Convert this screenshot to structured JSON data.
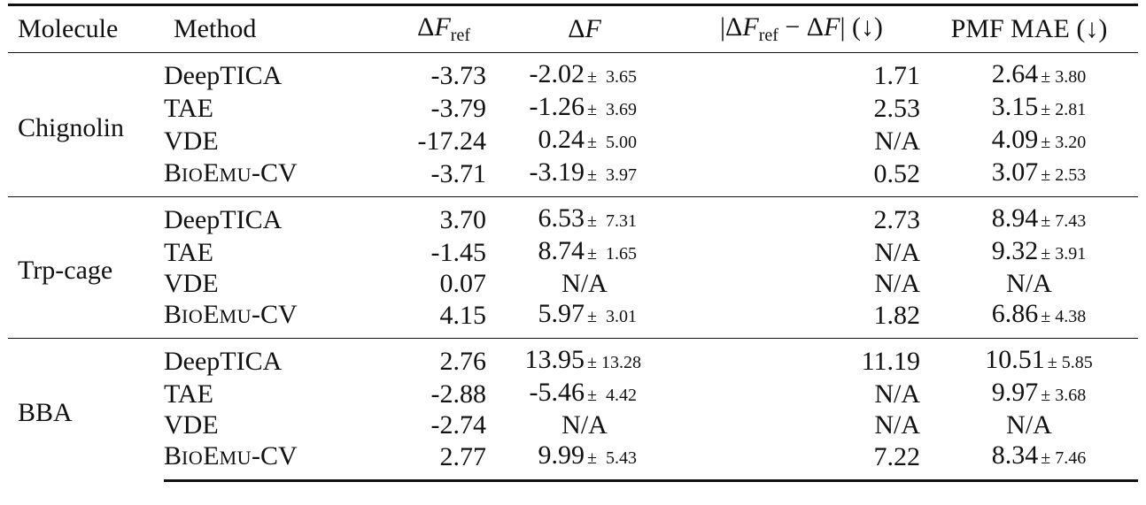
{
  "header": {
    "molecule": "Molecule",
    "method": "Method",
    "df_ref": "ΔF_ref",
    "df": "ΔF",
    "abs_diff": "|ΔF_ref − ΔF| (↓)",
    "pmf_mae": "PMF MAE (↓)"
  },
  "groups": [
    {
      "molecule": "Chignolin",
      "rows": [
        {
          "method": "DeepTICA",
          "df_ref": "-3.73",
          "df": "-2.02",
          "df_pm": "±  3.65",
          "abs": "1.71",
          "pmf": "2.64",
          "pmf_pm": "± 3.80"
        },
        {
          "method": "TAE",
          "df_ref": "-3.79",
          "df": "-1.26",
          "df_pm": "±  3.69",
          "abs": "2.53",
          "pmf": "3.15",
          "pmf_pm": "± 2.81"
        },
        {
          "method": "VDE",
          "df_ref": "-17.24",
          "df": "0.24",
          "df_pm": "±  5.00",
          "abs": "N/A",
          "pmf": "4.09",
          "pmf_pm": "± 3.20"
        },
        {
          "method": "BIOEMU-CV",
          "df_ref": "-3.71",
          "df": "-3.19",
          "df_pm": "±  3.97",
          "abs": "0.52",
          "pmf": "3.07",
          "pmf_pm": "± 2.53"
        }
      ]
    },
    {
      "molecule": "Trp-cage",
      "rows": [
        {
          "method": "DeepTICA",
          "df_ref": "3.70",
          "df": "6.53",
          "df_pm": "±  7.31",
          "abs": "2.73",
          "pmf": "8.94",
          "pmf_pm": "± 7.43"
        },
        {
          "method": "TAE",
          "df_ref": "-1.45",
          "df": "8.74",
          "df_pm": "±  1.65",
          "abs": "N/A",
          "pmf": "9.32",
          "pmf_pm": "± 3.91"
        },
        {
          "method": "VDE",
          "df_ref": "0.07",
          "df": "N/A",
          "df_pm": "",
          "abs": "N/A",
          "pmf": "N/A",
          "pmf_pm": ""
        },
        {
          "method": "BIOEMU-CV",
          "df_ref": "4.15",
          "df": "5.97",
          "df_pm": "±  3.01",
          "abs": "1.82",
          "pmf": "6.86",
          "pmf_pm": "± 4.38"
        }
      ]
    },
    {
      "molecule": "BBA",
      "rows": [
        {
          "method": "DeepTICA",
          "df_ref": "2.76",
          "df": "13.95",
          "df_pm": "± 13.28",
          "abs": "11.19",
          "pmf": "10.51",
          "pmf_pm": "± 5.85"
        },
        {
          "method": "TAE",
          "df_ref": "-2.88",
          "df": "-5.46",
          "df_pm": "±  4.42",
          "abs": "N/A",
          "pmf": "9.97",
          "pmf_pm": "± 3.68"
        },
        {
          "method": "VDE",
          "df_ref": "-2.74",
          "df": "N/A",
          "df_pm": "",
          "abs": "N/A",
          "pmf": "N/A",
          "pmf_pm": ""
        },
        {
          "method": "BIOEMU-CV",
          "df_ref": "2.77",
          "df": "9.99",
          "df_pm": "±  5.43",
          "abs": "7.22",
          "pmf": "8.34",
          "pmf_pm": "± 7.46"
        }
      ]
    }
  ]
}
